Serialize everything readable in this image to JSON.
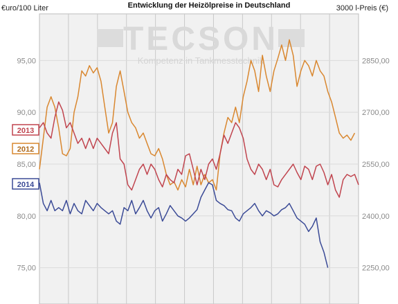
{
  "chart_data": {
    "type": "line",
    "title": "Entwicklung der Heizölpreise in Deutschland",
    "ylabel_left": "€uro/100 Liter",
    "ylabel_right": "3000 l-Preis (€)",
    "y_ticks_left": [
      "95,00",
      "90,00",
      "85,00",
      "80,00",
      "75,00"
    ],
    "y_ticks_right": [
      "2850,00",
      "2700,00",
      "2550,00",
      "2400,00",
      "2250,00"
    ],
    "ylim": [
      71.5,
      99.5
    ],
    "grid": true,
    "watermark": "TECSON",
    "watermark_sub": "Kompetenz in Tankmesstechnik",
    "series": [
      {
        "name": "2012",
        "color": "#d9872f",
        "values": [
          84.5,
          87.5,
          90.5,
          91.5,
          90.5,
          88.5,
          86.0,
          85.8,
          86.5,
          90.0,
          91.5,
          94.0,
          93.5,
          94.5,
          93.8,
          94.3,
          93.0,
          90.5,
          88.0,
          89.0,
          92.5,
          94.0,
          92.0,
          90.0,
          89.0,
          88.5,
          87.5,
          88.0,
          87.0,
          86.0,
          85.8,
          86.5,
          85.5,
          84.0,
          83.0,
          83.3,
          82.5,
          83.5,
          82.8,
          84.5,
          83.0,
          84.8,
          83.0,
          84.0,
          83.2,
          83.5,
          82.5,
          86.0,
          88.0,
          89.5,
          89.0,
          90.5,
          89.0,
          91.5,
          93.0,
          95.0,
          94.0,
          92.0,
          95.5,
          93.5,
          92.0,
          94.0,
          95.2,
          96.5,
          95.0,
          97.0,
          95.5,
          92.5,
          94.0,
          95.0,
          94.5,
          93.5,
          95.0,
          94.0,
          93.5,
          92.0,
          91.0,
          89.5,
          88.0,
          87.5,
          87.8,
          87.3,
          88.0
        ]
      },
      {
        "name": "2013",
        "color": "#c0444e",
        "values": [
          88.5,
          89.0,
          88.0,
          87.5,
          89.5,
          91.0,
          90.2,
          88.5,
          89.0,
          88.0,
          87.0,
          87.5,
          86.5,
          87.5,
          86.5,
          87.5,
          87.0,
          86.5,
          86.0,
          88.0,
          89.0,
          85.5,
          85.0,
          83.0,
          82.5,
          83.5,
          84.5,
          85.0,
          84.0,
          85.0,
          84.5,
          83.5,
          82.8,
          84.0,
          83.5,
          83.2,
          84.5,
          84.0,
          85.8,
          86.0,
          84.5,
          83.0,
          84.5,
          83.5,
          85.0,
          85.5,
          84.5,
          86.0,
          87.8,
          87.0,
          88.0,
          89.0,
          88.5,
          87.5,
          85.5,
          84.5,
          84.0,
          85.0,
          84.5,
          83.5,
          84.5,
          83.0,
          82.8,
          83.5,
          84.0,
          84.5,
          85.0,
          84.2,
          83.5,
          84.8,
          84.5,
          83.5,
          84.8,
          85.0,
          84.2,
          83.0,
          84.0,
          82.5,
          81.8,
          83.5,
          84.0,
          83.8,
          84.0,
          83.0
        ]
      },
      {
        "name": "2014",
        "color": "#3a4a96",
        "values": [
          83.2,
          81.2,
          80.5,
          81.5,
          80.5,
          80.8,
          80.5,
          81.5,
          80.2,
          81.2,
          80.5,
          80.2,
          81.5,
          81.0,
          80.5,
          81.2,
          80.8,
          80.5,
          80.2,
          80.5,
          79.5,
          79.2,
          80.8,
          80.5,
          81.5,
          80.2,
          80.8,
          81.5,
          80.5,
          79.8,
          80.5,
          80.8,
          79.5,
          80.2,
          81.0,
          80.5,
          80.0,
          79.8,
          79.5,
          79.8,
          80.2,
          80.6,
          81.8,
          82.5,
          83.2,
          83.0,
          81.5,
          81.2,
          81.0,
          80.6,
          80.5,
          79.8,
          79.5,
          80.2,
          80.5,
          80.8,
          81.2,
          80.5,
          80.0,
          80.5,
          80.3,
          80.0,
          80.2,
          80.6,
          80.8,
          81.2,
          80.5,
          79.8,
          79.5,
          79.2,
          78.5,
          79.0,
          79.8,
          77.5,
          76.5,
          75.0
        ]
      }
    ]
  }
}
